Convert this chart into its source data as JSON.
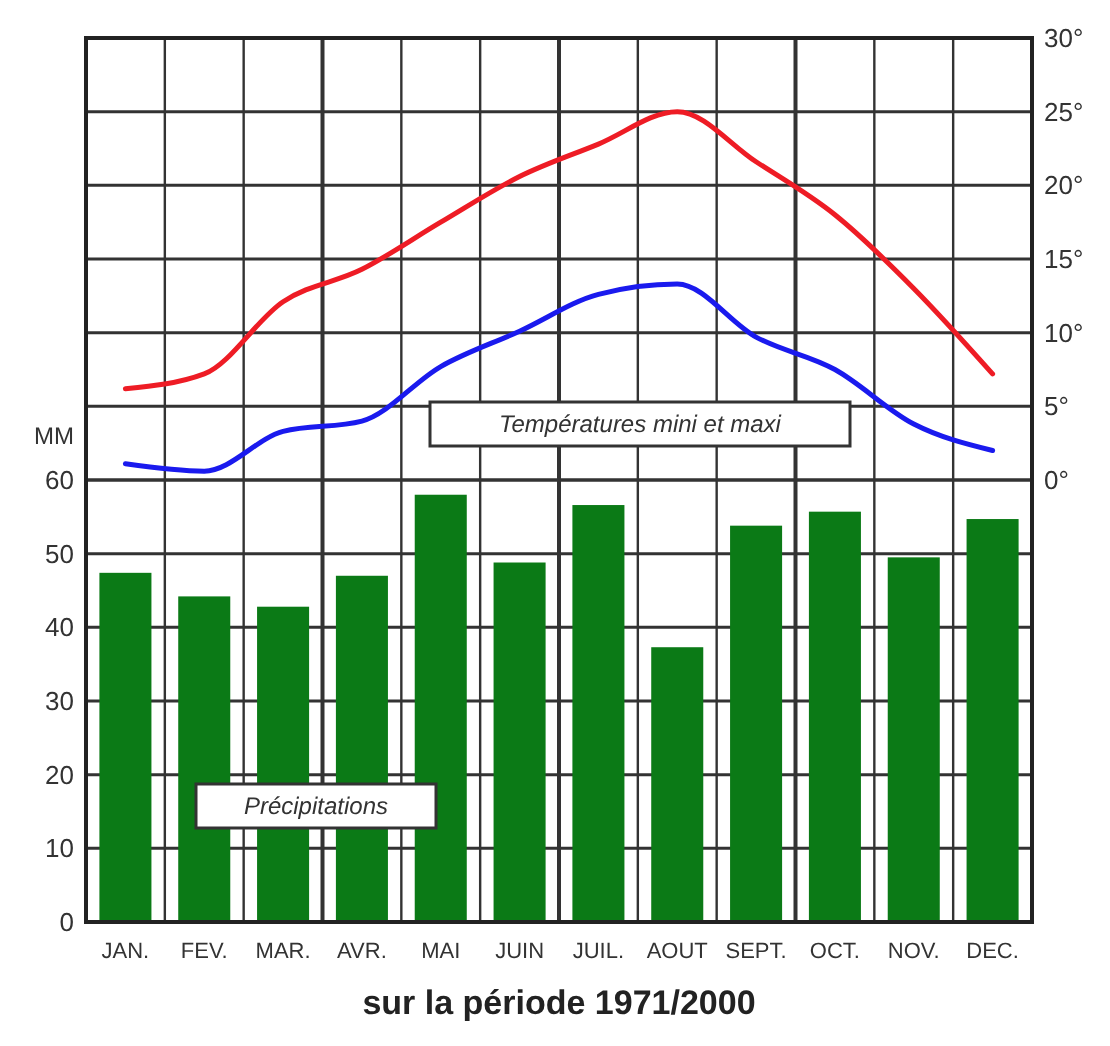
{
  "chart_data": {
    "type": "bar",
    "xlabel": "sur la période 1971/2000",
    "ylabel": "MM",
    "categories": [
      "JAN.",
      "FEV.",
      "MAR.",
      "AVR.",
      "MAI",
      "JUIN",
      "JUIL.",
      "AOUT",
      "SEPT.",
      "OCT.",
      "NOV.",
      "DEC."
    ],
    "series": [
      {
        "color": "#0b7a16",
        "values": [
          47.4,
          44.2,
          42.8,
          47,
          58,
          48.8,
          56.6,
          37.3,
          53.8,
          55.7,
          49.5,
          54.7
        ]
      },
      {
        "type": "line",
        "axis": "y2",
        "color": "#ee1c25",
        "values": [
          6.2,
          7.2,
          12.1,
          14.3,
          17.5,
          20.6,
          22.8,
          25,
          21.6,
          18,
          13,
          7.2
        ]
      },
      {
        "type": "line",
        "axis": "y2",
        "color": "#1a1aee",
        "values": [
          1.1,
          0.6,
          3.3,
          4,
          7.7,
          10.1,
          12.6,
          13.3,
          9.7,
          7.5,
          3.8,
          2
        ]
      }
    ],
    "ylim": [
      0,
      120
    ],
    "yticks": [
      0,
      10,
      20,
      30,
      40,
      50,
      60
    ],
    "y2lim": [
      -30,
      30
    ],
    "y2ticks": [
      {
        "value": 0,
        "label": "0°"
      },
      {
        "value": 5,
        "label": "5°"
      },
      {
        "value": 10,
        "label": "10°"
      },
      {
        "value": 15,
        "label": "15°"
      },
      {
        "value": 20,
        "label": "20°"
      },
      {
        "value": 25,
        "label": "25°"
      },
      {
        "value": 30,
        "label": "30°"
      }
    ],
    "grid": true,
    "annotations": [
      "Températures mini et maxi",
      "Précipitations"
    ]
  }
}
